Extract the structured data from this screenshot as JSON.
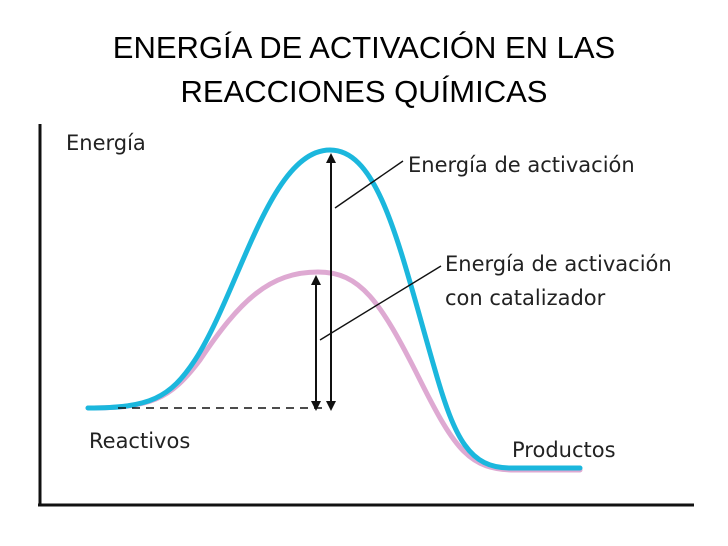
{
  "title": {
    "line1": "ENERGÍA DE ACTIVACIÓN EN LAS",
    "line2": "REACCIONES QUÍMICAS"
  },
  "diagram": {
    "y_axis_label": "Energía",
    "reactants_label": "Reactivos",
    "products_label": "Productos",
    "callout_uncatalyzed": "Energía de activación",
    "callout_catalyzed_line1": "Energía de activación",
    "callout_catalyzed_line2": "con catalizador",
    "colors": {
      "uncatalyzed_curve": "#1bb7dd",
      "catalyzed_curve": "#dea9d2",
      "axes": "#111111"
    }
  }
}
